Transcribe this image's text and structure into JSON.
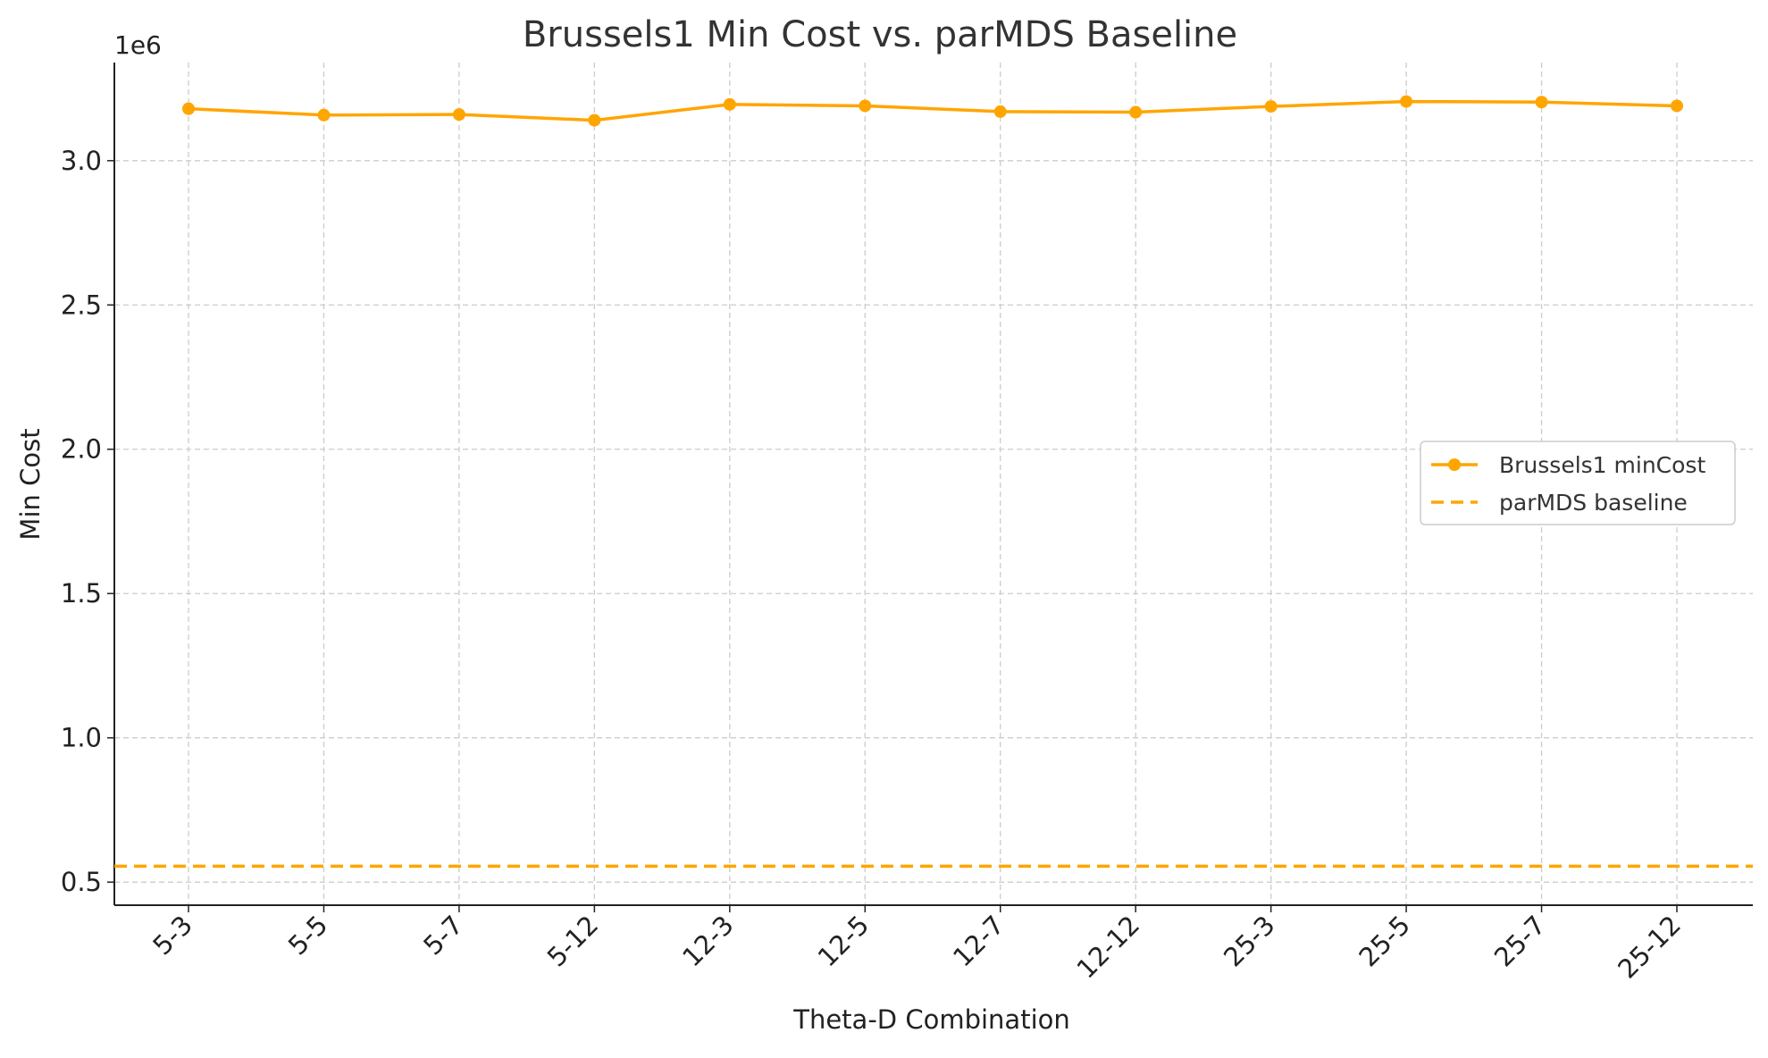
{
  "chart_data": {
    "type": "line",
    "title": "Brussels1 Min Cost vs. parMDS Baseline",
    "xlabel": "Theta-D Combination",
    "ylabel": "Min Cost",
    "y_offset_label": "1e6",
    "categories": [
      "5-3",
      "5-5",
      "5-7",
      "5-12",
      "12-3",
      "12-5",
      "12-7",
      "12-12",
      "25-3",
      "25-5",
      "25-7",
      "25-12"
    ],
    "y_ticks": [
      "0.5",
      "1.0",
      "1.5",
      "2.0",
      "2.5",
      "3.0"
    ],
    "ylim": [
      0.42,
      3.34
    ],
    "y_unit_multiplier": 1000000,
    "grid": true,
    "legend_position": "center-right",
    "series": [
      {
        "name": "Brussels1 minCost",
        "style": "solid-with-markers",
        "color": "#FFA500",
        "values": [
          3.18,
          3.158,
          3.16,
          3.14,
          3.195,
          3.19,
          3.17,
          3.168,
          3.188,
          3.205,
          3.203,
          3.19
        ]
      },
      {
        "name": "parMDS baseline",
        "style": "dashed",
        "color": "#FFA500",
        "value": 0.555
      }
    ]
  }
}
